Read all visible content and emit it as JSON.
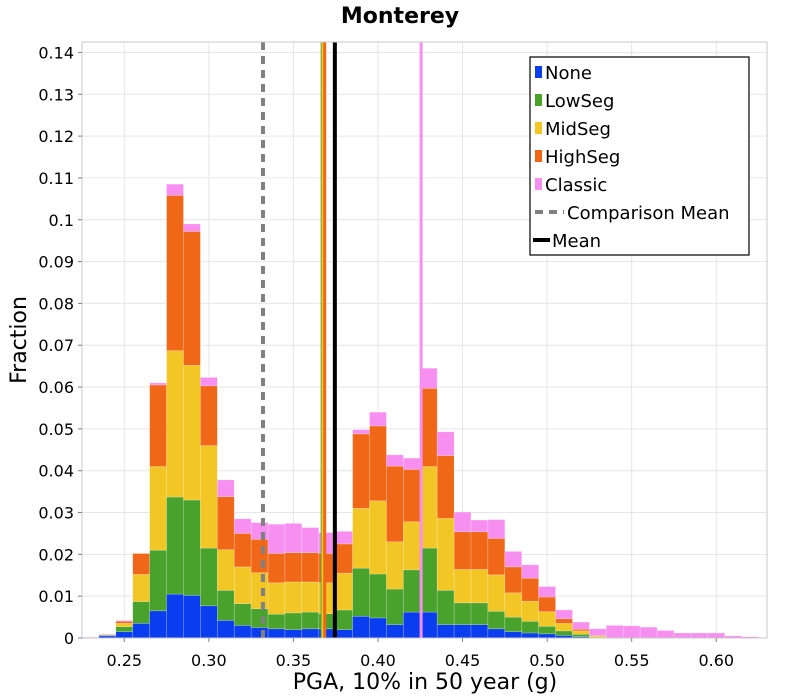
{
  "chart_data": {
    "type": "bar",
    "stacked": true,
    "title": "Monterey",
    "xlabel": "PGA, 10% in 50 year (g)",
    "ylabel": "Fraction",
    "xlim": [
      0.225,
      0.63
    ],
    "ylim": [
      0,
      0.1425
    ],
    "bin_width": 0.01,
    "grid": true,
    "legend_position": "top-right",
    "xticks": [
      0.25,
      0.3,
      0.35,
      0.4,
      0.45,
      0.5,
      0.55,
      0.6
    ],
    "xtick_labels": [
      "0.25",
      "0.30",
      "0.35",
      "0.40",
      "0.45",
      "0.50",
      "0.55",
      "0.60"
    ],
    "yticks": [
      0,
      0.01,
      0.02,
      0.03,
      0.04,
      0.05,
      0.06,
      0.07,
      0.08,
      0.09,
      0.1,
      0.11,
      0.12,
      0.13,
      0.14
    ],
    "ytick_labels": [
      "0",
      "0.01",
      "0.02",
      "0.03",
      "0.04",
      "0.05",
      "0.06",
      "0.07",
      "0.08",
      "0.09",
      "0.1",
      "0.11",
      "0.12",
      "0.13",
      "0.14"
    ],
    "x": [
      0.23,
      0.24,
      0.25,
      0.26,
      0.27,
      0.28,
      0.29,
      0.3,
      0.31,
      0.32,
      0.33,
      0.34,
      0.35,
      0.36,
      0.37,
      0.38,
      0.39,
      0.4,
      0.41,
      0.42,
      0.43,
      0.44,
      0.45,
      0.46,
      0.47,
      0.48,
      0.49,
      0.5,
      0.51,
      0.52,
      0.53,
      0.54,
      0.55,
      0.56,
      0.57,
      0.58,
      0.59,
      0.6,
      0.61,
      0.62
    ],
    "series": [
      {
        "name": "None",
        "color": "#0a3cf0",
        "values": [
          0,
          0.0005,
          0.0015,
          0.0035,
          0.0065,
          0.0105,
          0.0102,
          0.0077,
          0.0042,
          0.003,
          0.0025,
          0.0022,
          0.002,
          0.0022,
          0.0022,
          0.002,
          0.0052,
          0.0048,
          0.0032,
          0.0062,
          0.0062,
          0.0032,
          0.0032,
          0.0032,
          0.0022,
          0.0015,
          0.0012,
          0.001,
          0.0006,
          0.0003,
          0,
          0,
          0,
          0,
          0,
          0,
          0,
          0,
          0,
          0
        ]
      },
      {
        "name": "LowSeg",
        "color": "#48a22b",
        "values": [
          0,
          0.0002,
          0.0012,
          0.0052,
          0.0145,
          0.0232,
          0.0228,
          0.0138,
          0.0072,
          0.0052,
          0.0045,
          0.0035,
          0.004,
          0.004,
          0.0036,
          0.0047,
          0.0115,
          0.0105,
          0.0085,
          0.0101,
          0.0153,
          0.0082,
          0.0052,
          0.0052,
          0.0042,
          0.0035,
          0.0028,
          0.0018,
          0.0011,
          0.0006,
          0.0002,
          0,
          0,
          0,
          0,
          0,
          0,
          0,
          0,
          0
        ]
      },
      {
        "name": "MidSeg",
        "color": "#f2c625",
        "values": [
          0,
          0,
          0.0008,
          0.0065,
          0.02,
          0.035,
          0.0322,
          0.0245,
          0.0097,
          0.0088,
          0.0086,
          0.0075,
          0.0074,
          0.0072,
          0.0074,
          0.0088,
          0.0143,
          0.0175,
          0.0113,
          0.0115,
          0.0195,
          0.0172,
          0.008,
          0.008,
          0.0087,
          0.0058,
          0.0048,
          0.0035,
          0.0018,
          0.0008,
          0.0003,
          0,
          0,
          0,
          0,
          0,
          0,
          0,
          0,
          0
        ]
      },
      {
        "name": "HighSeg",
        "color": "#f06718",
        "values": [
          0,
          0,
          0.0005,
          0.005,
          0.0195,
          0.0371,
          0.032,
          0.0143,
          0.0127,
          0.008,
          0.008,
          0.007,
          0.007,
          0.007,
          0.007,
          0.007,
          0.0178,
          0.0179,
          0.0181,
          0.0125,
          0.0187,
          0.015,
          0.009,
          0.009,
          0.0087,
          0.0062,
          0.0055,
          0.0035,
          0.0011,
          0.0004,
          0.0001,
          0,
          0,
          0,
          0,
          0,
          0,
          0,
          0,
          0
        ]
      },
      {
        "name": "Classic",
        "color": "#f78ff0",
        "values": [
          0.0002,
          0.0002,
          0.0002,
          0,
          0.0005,
          0.0027,
          0.0018,
          0.002,
          0.004,
          0.0035,
          0.004,
          0.007,
          0.007,
          0.006,
          0.005,
          0.003,
          0.001,
          0.0033,
          0.0027,
          0.0027,
          0.0048,
          0.0057,
          0.0047,
          0.0028,
          0.0045,
          0.0037,
          0.0032,
          0.0025,
          0.0021,
          0.0017,
          0.0016,
          0.003,
          0.0029,
          0.0026,
          0.0018,
          0.0012,
          0.0012,
          0.0012,
          0.0005,
          0.0003
        ]
      }
    ],
    "vertical_lines": [
      {
        "name": "LowSeg mean",
        "x": 0.367,
        "color": "#48a22b",
        "style": "solid"
      },
      {
        "name": "MidSeg mean",
        "x": 0.3675,
        "color": "#f2c625",
        "style": "solid"
      },
      {
        "name": "HighSeg mean",
        "x": 0.3685,
        "color": "#f06718",
        "style": "solid"
      },
      {
        "name": "Classic mean",
        "x": 0.4255,
        "color": "#f78ff0",
        "style": "solid"
      },
      {
        "name": "Comparison Mean",
        "x": 0.332,
        "color": "#808080",
        "style": "dashed"
      },
      {
        "name": "Mean",
        "x": 0.3745,
        "color": "#000000",
        "style": "solid"
      }
    ],
    "legend": [
      {
        "label": "None",
        "kind": "box",
        "color": "#0a3cf0"
      },
      {
        "label": "LowSeg",
        "kind": "box",
        "color": "#48a22b"
      },
      {
        "label": "MidSeg",
        "kind": "box",
        "color": "#f2c625"
      },
      {
        "label": "HighSeg",
        "kind": "box",
        "color": "#f06718"
      },
      {
        "label": "Classic",
        "kind": "box",
        "color": "#f78ff0"
      },
      {
        "label": "Comparison Mean",
        "kind": "dashed",
        "color": "#808080"
      },
      {
        "label": "Mean",
        "kind": "solid",
        "color": "#000000"
      }
    ]
  }
}
